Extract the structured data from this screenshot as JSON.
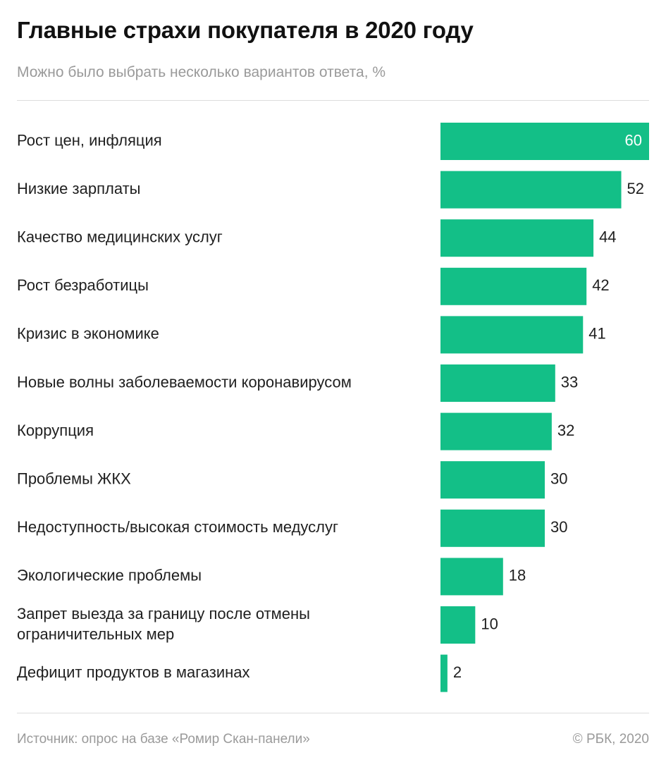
{
  "header": {
    "title": "Главные страхи покупателя в 2020 году",
    "subtitle": "Можно было выбрать несколько вариантов ответа, %"
  },
  "footer": {
    "source": "Источник: опрос на базе «Ромир Скан-панели»",
    "copyright": "© РБК, 2020"
  },
  "colors": {
    "bar": "#13bf87"
  },
  "chart_data": {
    "type": "bar",
    "orientation": "horizontal",
    "title": "Главные страхи покупателя в 2020 году",
    "subtitle": "Можно было выбрать несколько вариантов ответа, %",
    "categories": [
      [
        "Рост цен, инфляция"
      ],
      [
        "Низкие зарплаты"
      ],
      [
        "Качество медицинских услуг"
      ],
      [
        "Рост безработицы"
      ],
      [
        "Кризис в экономике"
      ],
      [
        "Новые волны заболеваемости коронавирусом"
      ],
      [
        "Коррупция"
      ],
      [
        "Проблемы ЖКХ"
      ],
      [
        "Недоступность/высокая стоимость медуслуг"
      ],
      [
        "Экологические проблемы"
      ],
      [
        "Запрет выезда за границу после отмены",
        "ограничительных мер"
      ],
      [
        "Дефицит продуктов в магазинах"
      ]
    ],
    "values": [
      60,
      52,
      44,
      42,
      41,
      33,
      32,
      30,
      30,
      18,
      10,
      2
    ],
    "xlim": [
      0,
      60
    ],
    "grid": false,
    "legend": "none"
  }
}
